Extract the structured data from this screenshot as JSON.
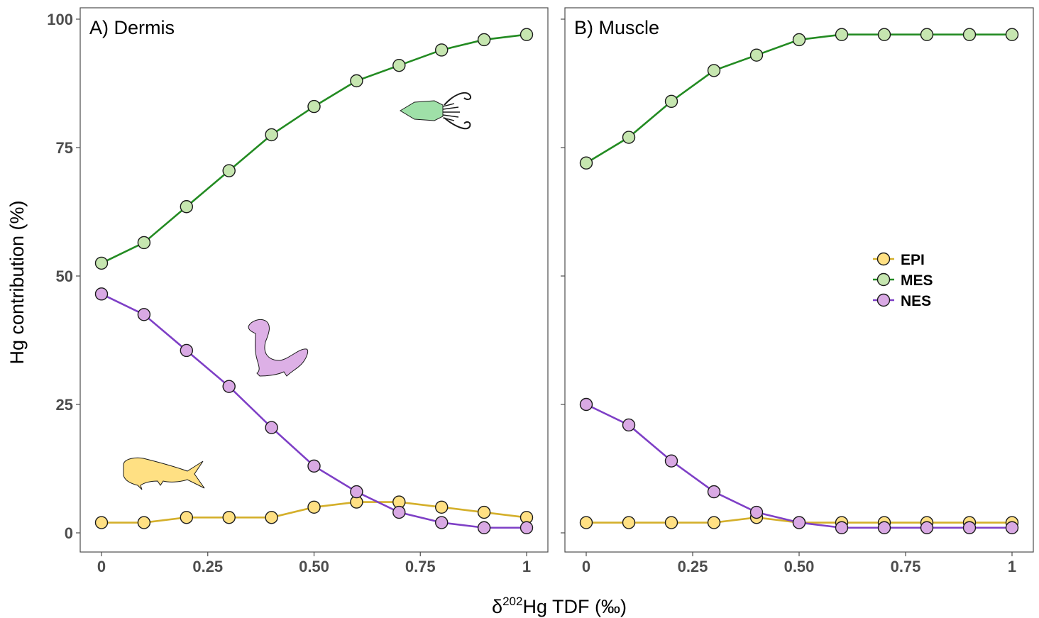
{
  "chart_data": {
    "type": "line",
    "xlabel": {
      "prefix": "δ",
      "sup": "202",
      "main": "Hg TDF (‰)"
    },
    "ylabel": "Hg contribution (%)",
    "xlim": [
      0,
      1
    ],
    "ylim": [
      0,
      100
    ],
    "x_ticks": [
      0,
      0.25,
      0.5,
      0.75,
      1
    ],
    "x_tick_labels": [
      "0",
      "0.25",
      "0.50",
      "0.75",
      "1"
    ],
    "y_ticks": [
      0,
      25,
      50,
      75,
      100
    ],
    "y_tick_labels": [
      "0",
      "25",
      "50",
      "75",
      "100"
    ],
    "grid": false,
    "legend": {
      "placement": "right",
      "entries": [
        {
          "name": "EPI",
          "fill": "#FFE083",
          "line": "#D4AF2A"
        },
        {
          "name": "MES",
          "fill": "#C6E6B0",
          "line": "#238B22"
        },
        {
          "name": "NES",
          "fill": "#D9A9E4",
          "line": "#7E3FC6"
        }
      ]
    },
    "x": [
      0,
      0.1,
      0.2,
      0.3,
      0.4,
      0.5,
      0.6,
      0.7,
      0.8,
      0.9,
      1
    ],
    "panels": [
      {
        "title": "A) Dermis",
        "icons": [
          "squid-icon",
          "seal-icon",
          "dolphinfish-icon"
        ],
        "series": [
          {
            "name": "EPI",
            "values": [
              2,
              2,
              3,
              3,
              3,
              5,
              6,
              6,
              5,
              4,
              3
            ]
          },
          {
            "name": "MES",
            "values": [
              52.5,
              56.5,
              63.5,
              70.5,
              77.5,
              83,
              88,
              91,
              94,
              96,
              97
            ]
          },
          {
            "name": "NES",
            "values": [
              46.5,
              42.5,
              35.5,
              28.5,
              20.5,
              13,
              8,
              4,
              2,
              1,
              1
            ]
          }
        ]
      },
      {
        "title": "B) Muscle",
        "icons": [],
        "series": [
          {
            "name": "EPI",
            "values": [
              2,
              2,
              2,
              2,
              3,
              2,
              2,
              2,
              2,
              2,
              2
            ]
          },
          {
            "name": "MES",
            "values": [
              72,
              77,
              84,
              90,
              93,
              96,
              97,
              97,
              97,
              97,
              97
            ]
          },
          {
            "name": "NES",
            "values": [
              25,
              21,
              14,
              8,
              4,
              2,
              1,
              1,
              1,
              1,
              1
            ]
          }
        ]
      }
    ]
  }
}
